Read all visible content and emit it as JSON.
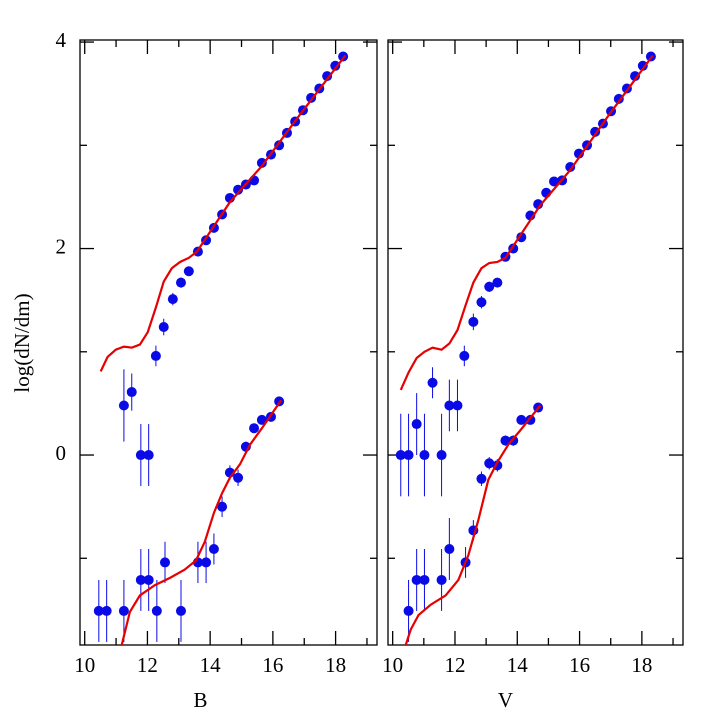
{
  "chart_data": [
    {
      "type": "scatter",
      "xlabel": "B",
      "ylabel": "log(dN/dm)",
      "xlim": [
        9.85,
        19.32
      ],
      "ylim": [
        -1.84,
        4.02
      ],
      "xticks": [
        10,
        12,
        14,
        16,
        18
      ],
      "xminorticks": [
        11,
        13,
        15,
        17,
        19
      ],
      "yticks": [
        0,
        2,
        4
      ],
      "yminorticks": [
        -1,
        1,
        3
      ],
      "show_ytick_labels": true,
      "series": [
        {
          "type": "points",
          "color": "#0a0ae6",
          "x": [
            12.27,
            12.52,
            12.81,
            13.07,
            13.32,
            13.61,
            13.87,
            14.12,
            14.38,
            14.63,
            14.89,
            15.14,
            15.4,
            15.65,
            15.94,
            16.2,
            16.45,
            16.71,
            16.96,
            17.22,
            17.48,
            17.73,
            17.99,
            18.24
          ],
          "values": [
            0.96,
            1.24,
            1.51,
            1.67,
            1.78,
            1.97,
            2.08,
            2.2,
            2.33,
            2.49,
            2.57,
            2.62,
            2.66,
            2.83,
            2.91,
            3.0,
            3.12,
            3.23,
            3.34,
            3.46,
            3.55,
            3.67,
            3.77,
            3.86
          ],
          "errors": [
            0.1,
            0.08,
            0.06,
            0.05,
            0.04,
            0.04,
            0.03,
            0.03,
            0.03,
            0.03,
            0.03,
            0.03,
            0.03,
            0.03,
            0.02,
            0.02,
            0.02,
            0.02,
            0.02,
            0.02,
            0.02,
            0.02,
            0.02,
            0.02
          ]
        },
        {
          "type": "points",
          "color": "#0a0ae6",
          "x": [
            10.45,
            10.7,
            11.25,
            11.25,
            11.5,
            11.79,
            11.79,
            12.04,
            12.04,
            12.3,
            12.56,
            13.07,
            13.61,
            13.87,
            14.12,
            14.38,
            14.63,
            14.89,
            15.14,
            15.4,
            15.65,
            15.94,
            16.2
          ],
          "values": [
            -1.51,
            -1.51,
            -1.51,
            0.48,
            0.61,
            0,
            -1.21,
            0,
            -1.21,
            -1.51,
            -1.04,
            -1.51,
            -1.04,
            -1.04,
            -0.91,
            -0.5,
            -0.17,
            -0.22,
            0.08,
            0.26,
            0.34,
            0.37,
            0.52
          ],
          "errors": [
            0.3,
            0.3,
            0.3,
            0.35,
            0.18,
            0.3,
            0.3,
            0.3,
            0.3,
            0.3,
            0.2,
            0.3,
            0.2,
            0.2,
            0.15,
            0.1,
            0.07,
            0.08,
            0.05,
            0.04,
            0.04,
            0.04,
            0.03
          ]
        },
        {
          "type": "line",
          "color": "#e60000",
          "x": [
            10.51,
            10.73,
            10.99,
            11.25,
            11.5,
            11.76,
            12.01,
            12.27,
            12.52,
            12.78,
            13.04,
            13.32,
            13.58,
            14.63,
            15.65,
            16.87,
            18.31
          ],
          "values": [
            0.81,
            0.95,
            1.02,
            1.05,
            1.04,
            1.07,
            1.19,
            1.43,
            1.68,
            1.81,
            1.87,
            1.91,
            1.97,
            2.45,
            2.8,
            3.3,
            3.87
          ]
        },
        {
          "type": "line",
          "color": "#e60000",
          "x": [
            11.18,
            11.44,
            11.76,
            12.24,
            12.72,
            13.19,
            13.55,
            13.83,
            14.12,
            14.38,
            14.63,
            14.95,
            15.27,
            15.65,
            16.26
          ],
          "values": [
            -1.84,
            -1.52,
            -1.36,
            -1.26,
            -1.19,
            -1.11,
            -1.02,
            -0.84,
            -0.56,
            -0.37,
            -0.22,
            -0.09,
            0.1,
            0.26,
            0.53
          ]
        }
      ]
    },
    {
      "type": "scatter",
      "xlabel": "V",
      "xlim": [
        9.85,
        19.32
      ],
      "ylim": [
        -1.84,
        4.02
      ],
      "xticks": [
        10,
        12,
        14,
        16,
        18
      ],
      "xminorticks": [
        11,
        13,
        15,
        17,
        19
      ],
      "yticks": [
        0,
        2,
        4
      ],
      "yminorticks": [
        -1,
        1,
        3
      ],
      "show_ytick_labels": false,
      "series": [
        {
          "type": "points",
          "color": "#0a0ae6",
          "x": [
            12.3,
            12.59,
            12.85,
            13.1,
            13.36,
            13.62,
            13.87,
            14.13,
            14.42,
            14.67,
            14.93,
            15.18,
            15.44,
            15.7,
            15.98,
            16.24,
            16.5,
            16.75,
            17.01,
            17.26,
            17.52,
            17.78,
            18.03,
            18.29
          ],
          "values": [
            0.96,
            1.29,
            1.48,
            1.63,
            1.67,
            1.92,
            2.0,
            2.11,
            2.32,
            2.43,
            2.54,
            2.65,
            2.66,
            2.79,
            2.92,
            3.0,
            3.13,
            3.21,
            3.33,
            3.45,
            3.55,
            3.67,
            3.77,
            3.86
          ],
          "errors": [
            0.1,
            0.08,
            0.06,
            0.05,
            0.04,
            0.04,
            0.03,
            0.03,
            0.03,
            0.03,
            0.03,
            0.03,
            0.03,
            0.03,
            0.02,
            0.02,
            0.02,
            0.02,
            0.02,
            0.02,
            0.02,
            0.02,
            0.02,
            0.02
          ]
        },
        {
          "type": "points",
          "color": "#0a0ae6",
          "x": [
            10.26,
            10.51,
            10.51,
            10.77,
            10.77,
            11.02,
            11.02,
            11.28,
            11.57,
            11.57,
            11.82,
            11.82,
            12.08,
            12.34,
            12.59,
            12.85,
            13.1,
            13.36,
            13.62,
            13.87,
            14.13,
            14.42,
            14.67
          ],
          "values": [
            0,
            0,
            -1.51,
            0.3,
            -1.21,
            0,
            -1.21,
            0.7,
            0,
            -1.21,
            0.48,
            -0.91,
            0.48,
            -1.04,
            -0.73,
            -0.23,
            -0.08,
            -0.1,
            0.14,
            0.14,
            0.34,
            0.34,
            0.46
          ],
          "errors": [
            0.4,
            0.4,
            0.3,
            0.3,
            0.3,
            0.4,
            0.3,
            0.15,
            0.4,
            0.3,
            0.25,
            0.3,
            0.25,
            0.15,
            0.1,
            0.07,
            0.06,
            0.06,
            0.05,
            0.05,
            0.04,
            0.04,
            0.03
          ]
        },
        {
          "type": "line",
          "color": "#e60000",
          "x": [
            10.26,
            10.51,
            10.77,
            11.02,
            11.28,
            11.57,
            11.82,
            12.08,
            12.34,
            12.59,
            12.85,
            13.1,
            13.36,
            13.62,
            14.74,
            15.7,
            16.98,
            18.35
          ],
          "values": [
            0.63,
            0.8,
            0.94,
            1.0,
            1.04,
            1.02,
            1.08,
            1.21,
            1.45,
            1.67,
            1.81,
            1.86,
            1.87,
            1.91,
            2.42,
            2.76,
            3.31,
            3.87
          ]
        },
        {
          "type": "line",
          "color": "#e60000",
          "x": [
            10.42,
            10.58,
            10.83,
            11.22,
            11.7,
            12.11,
            12.43,
            12.75,
            13.07,
            13.36,
            13.71,
            14.1,
            14.74
          ],
          "values": [
            -1.84,
            -1.69,
            -1.55,
            -1.45,
            -1.36,
            -1.21,
            -0.97,
            -0.63,
            -0.24,
            -0.07,
            0.1,
            0.24,
            0.48
          ]
        }
      ]
    }
  ]
}
